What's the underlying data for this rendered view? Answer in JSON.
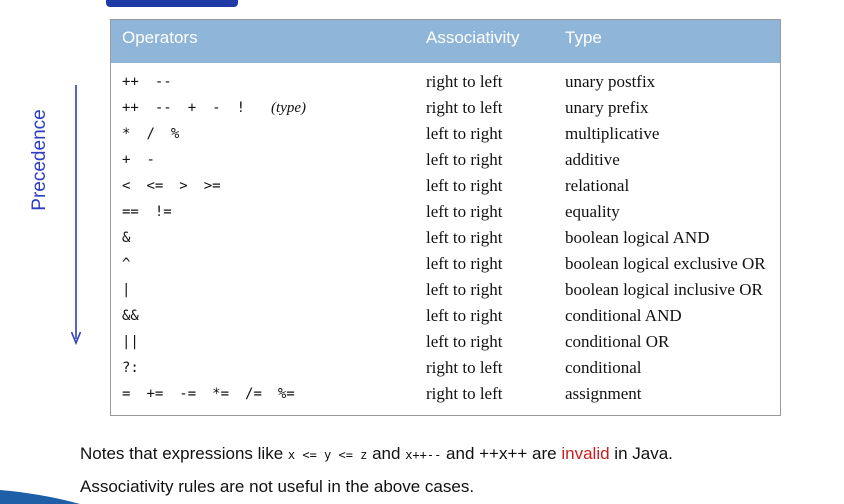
{
  "table": {
    "headers": {
      "operators": "Operators",
      "associativity": "Associativity",
      "type": "Type"
    },
    "rows": [
      {
        "operators": [
          "++",
          "--"
        ],
        "associativity": "right to left",
        "type": "unary postfix"
      },
      {
        "operators": [
          "++",
          "--",
          "+",
          "-",
          "!"
        ],
        "note": "(type)",
        "associativity": "right to left",
        "type": "unary prefix"
      },
      {
        "operators": [
          "*",
          "/",
          "%"
        ],
        "associativity": "left to right",
        "type": "multiplicative"
      },
      {
        "operators": [
          "+",
          "-"
        ],
        "associativity": "left to right",
        "type": "additive"
      },
      {
        "operators": [
          "<",
          "<=",
          ">",
          ">="
        ],
        "associativity": "left to right",
        "type": "relational"
      },
      {
        "operators": [
          "==",
          "!="
        ],
        "associativity": "left to right",
        "type": "equality"
      },
      {
        "operators": [
          "&"
        ],
        "associativity": "left to right",
        "type": "boolean logical AND"
      },
      {
        "operators": [
          "^"
        ],
        "associativity": "left to right",
        "type": "boolean logical exclusive OR"
      },
      {
        "operators": [
          "|"
        ],
        "associativity": "left to right",
        "type": "boolean logical inclusive OR"
      },
      {
        "operators": [
          "&&"
        ],
        "associativity": "left to right",
        "type": "conditional AND"
      },
      {
        "operators": [
          "||"
        ],
        "associativity": "left to right",
        "type": "conditional OR"
      },
      {
        "operators": [
          "?:"
        ],
        "associativity": "right to left",
        "type": "conditional"
      },
      {
        "operators": [
          "=",
          "+=",
          "-=",
          "*=",
          "/=",
          "%="
        ],
        "associativity": "right to left",
        "type": "assignment"
      }
    ]
  },
  "side_label": "Precedence",
  "notes": {
    "line1_a": "Notes that expressions like ",
    "code1": "x <= y <= z",
    "line1_b": " and ",
    "code2": "x++--",
    "line1_c": " and ++x++ are ",
    "invalid": "invalid",
    "line1_d": " in Java.",
    "line2": "Associativity rules are not useful in the above cases."
  },
  "colors": {
    "header_bg": "#8fb5d8",
    "title_blue": "#1f3ca6",
    "label_blue": "#2c3ec2",
    "invalid_red": "#c81e1e"
  }
}
